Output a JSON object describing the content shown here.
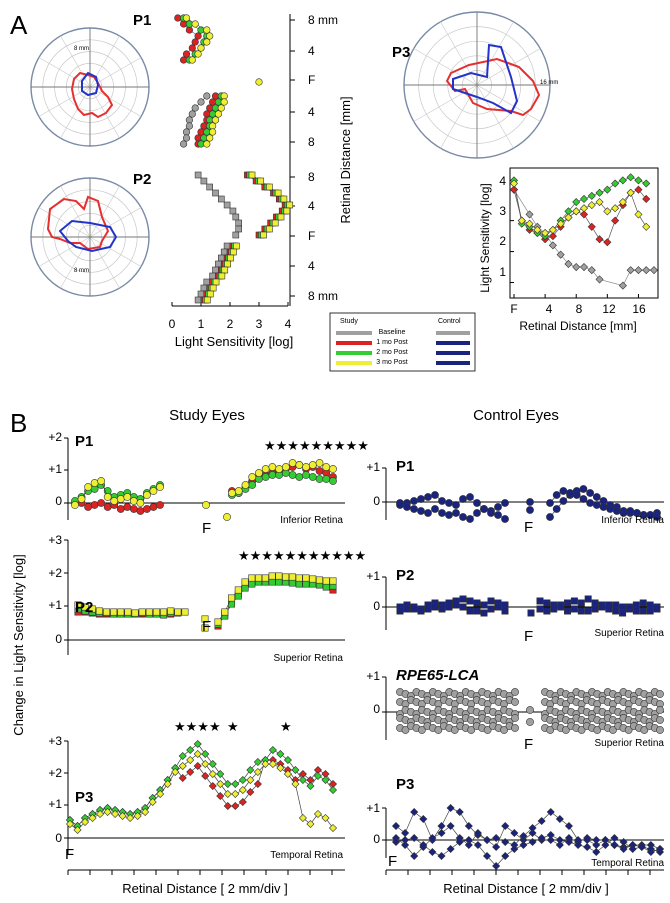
{
  "panels": {
    "A": "A",
    "B": "B"
  },
  "patients": {
    "p1": "P1",
    "p2": "P2",
    "p3": "P3",
    "lca": "RPE65-LCA"
  },
  "colors": {
    "baseline": "#a0a0a0",
    "mo1": "#dd2222",
    "mo2": "#33cc33",
    "mo3": "#eeee33",
    "control": "#1a237e",
    "red_line": "#e53030",
    "blue_line": "#2233cc"
  },
  "polar": {
    "p1_scale": "8 mm",
    "p2_scale": "8 mm",
    "p3_scale": "16 mm"
  },
  "vert": {
    "ticks": [
      "8 mm",
      "4",
      "F",
      "4",
      "8",
      "8",
      "4",
      "F",
      "4",
      "8 mm"
    ],
    "ylabel": "Retinal Distance [mm]",
    "xticks": [
      "0",
      "1",
      "2",
      "3",
      "4"
    ],
    "xlabel": "Light Sensitivity [log]"
  },
  "legend": {
    "study": "Study",
    "control": "Control",
    "rows": [
      "Baseline",
      "1 mo Post",
      "2 mo Post",
      "3 mo Post"
    ]
  },
  "p3chart": {
    "yticks": [
      "1",
      "2",
      "3",
      "4"
    ],
    "xticks": [
      "F",
      "4",
      "8",
      "12",
      "16"
    ],
    "ylabel": "Light Sensitivity [log]",
    "xlabel": "Retinal Distance [mm]"
  },
  "B": {
    "study_title": "Study Eyes",
    "control_title": "Control Eyes",
    "ylabel": "Change in Light Sensitivity [log]",
    "xlabel": "Retinal Distance [ 2 mm/div ]",
    "fovea": "F",
    "p1_ticks": [
      "+2",
      "+1",
      "0"
    ],
    "p23_ticks": [
      "+3",
      "+2",
      "+1",
      "0"
    ],
    "ctrl_ticks": [
      "+1",
      "0"
    ],
    "inferior": "Inferior Retina",
    "superior": "Superior Retina",
    "temporal": "Temporal Retina",
    "stars_p1": "★★★★★★★★★",
    "stars_p2": "★★★★★★★★★★★",
    "stars_p3a": "★★★★",
    "stars_p3b": "★",
    "stars_p3c": "★"
  },
  "chart_data": {
    "type": "scatter",
    "series": [
      {
        "name": "Baseline",
        "x": [
          0,
          2,
          3,
          4,
          5,
          6,
          7,
          8,
          9,
          10,
          11,
          14,
          15,
          16,
          17,
          18
        ],
        "y": [
          4.0,
          3.2,
          2.8,
          2.6,
          2.2,
          1.9,
          1.6,
          1.5,
          1.5,
          1.4,
          1.1,
          0.9,
          1.4,
          1.4,
          1.4,
          1.4
        ]
      },
      {
        "name": "1 mo Post",
        "x": [
          0,
          1,
          2,
          3,
          4,
          5,
          6,
          7,
          8,
          9,
          10,
          11,
          12,
          13,
          14,
          15,
          16,
          17
        ],
        "y": [
          4.0,
          3.0,
          2.7,
          2.6,
          2.4,
          2.5,
          2.8,
          3.1,
          3.3,
          3.2,
          2.8,
          2.4,
          2.3,
          3.0,
          3.5,
          3.9,
          4.0,
          3.7
        ]
      },
      {
        "name": "2 mo Post",
        "x": [
          0,
          1,
          2,
          3,
          4,
          5,
          6,
          7,
          8,
          9,
          10,
          11,
          12,
          13,
          14,
          15,
          16,
          17
        ],
        "y": [
          4.3,
          2.9,
          2.8,
          2.6,
          2.5,
          2.7,
          3.0,
          3.3,
          3.6,
          3.7,
          3.8,
          3.9,
          4.0,
          4.2,
          4.3,
          4.4,
          4.3,
          4.2
        ]
      },
      {
        "name": "3 mo Post",
        "x": [
          0,
          1,
          2,
          3,
          4,
          5,
          6,
          7,
          8,
          9,
          10,
          11,
          12,
          13,
          14,
          15,
          16,
          17
        ],
        "y": [
          4.2,
          3.0,
          2.9,
          2.7,
          2.6,
          2.7,
          2.9,
          3.1,
          3.3,
          3.4,
          3.5,
          3.6,
          3.3,
          3.4,
          3.6,
          3.9,
          3.2,
          2.8
        ]
      }
    ],
    "xlabel": "Retinal Distance [mm]",
    "ylabel": "Light Sensitivity [log]",
    "xlim": [
      0,
      18
    ],
    "ylim": [
      0.5,
      4.7
    ]
  }
}
